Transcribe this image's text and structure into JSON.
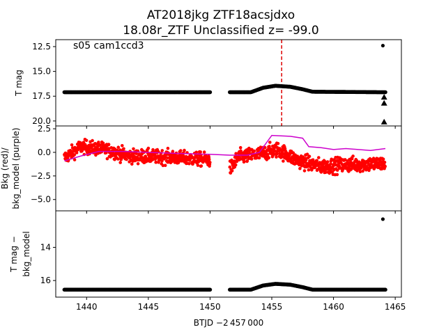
{
  "figure": {
    "title_line1": "AT2018jkg  ZTF18acsjdxo",
    "title_line2": "18.08r_ZTF Unclassified z= -99.0",
    "annotation": "s05 cam1ccd3",
    "xlabel": "BTJD −2 457 000"
  },
  "chart_data": [
    {
      "type": "scatter",
      "panel": "top",
      "ylabel": "T mag",
      "y_inverted": true,
      "xlim": [
        1437.5,
        1465.5
      ],
      "ylim": [
        20.5,
        11.8
      ],
      "xticks": [
        1440,
        1445,
        1450,
        1455,
        1460,
        1465
      ],
      "yticks": [
        12.5,
        15.0,
        17.5,
        20.0
      ],
      "ytick_labels": [
        "12.5",
        "15.0",
        "17.5",
        "20.0"
      ],
      "grid": false,
      "series": [
        {
          "marker": "dot",
          "color": "#000000",
          "segments": [
            {
              "x_start": 1438.2,
              "x_end": 1450.0,
              "profile": [
                [
                  1438.2,
                  17.1
                ],
                [
                  1450.0,
                  17.1
                ]
              ]
            },
            {
              "x_start": 1451.6,
              "x_end": 1464.2,
              "profile": [
                [
                  1451.6,
                  17.1
                ],
                [
                  1453.3,
                  17.1
                ],
                [
                  1454.3,
                  16.65
                ],
                [
                  1455.3,
                  16.45
                ],
                [
                  1456.5,
                  16.55
                ],
                [
                  1457.5,
                  16.8
                ],
                [
                  1458.3,
                  17.05
                ],
                [
                  1464.2,
                  17.1
                ]
              ]
            }
          ]
        },
        {
          "marker": "dot",
          "color": "#000000",
          "points": [
            [
              1464.0,
              12.4
            ]
          ]
        },
        {
          "marker": "triangle",
          "color": "#000000",
          "points": [
            [
              1464.1,
              17.6
            ],
            [
              1464.1,
              18.2
            ],
            [
              1464.1,
              20.1
            ],
            [
              1464.1,
              21.0
            ]
          ]
        }
      ],
      "vline": {
        "x": 1455.8,
        "color": "#dd0000",
        "style": "dashed"
      }
    },
    {
      "type": "scatter",
      "panel": "middle",
      "ylabel_line1": "Bkg (red)/",
      "ylabel_line2": "bkg_model (purple)",
      "xlim": [
        1437.5,
        1465.5
      ],
      "ylim": [
        -6.2,
        2.8
      ],
      "xticks": [
        1440,
        1445,
        1450,
        1455,
        1460,
        1465
      ],
      "yticks": [
        2.5,
        0.0,
        -2.5,
        -5.0
      ],
      "ytick_labels": [
        "2.5",
        "0.0",
        "−2.5",
        "−5.0"
      ],
      "grid": false,
      "series": [
        {
          "color": "#ff0000",
          "marker": "dot",
          "segments": [
            {
              "x_start": 1438.2,
              "x_end": 1450.0,
              "profile": [
                [
                  1438.2,
                  -0.6
                ],
                [
                  1439.5,
                  0.6
                ],
                [
                  1441.5,
                  0.3
                ],
                [
                  1443.5,
                  -0.4
                ],
                [
                  1446.5,
                  -0.5
                ],
                [
                  1450.0,
                  -0.8
                ]
              ],
              "spread": 1.2
            },
            {
              "x_start": 1451.6,
              "x_end": 1464.2,
              "profile": [
                [
                  1451.6,
                  -1.8
                ],
                [
                  1452.3,
                  -0.5
                ],
                [
                  1454.0,
                  -0.2
                ],
                [
                  1455.5,
                  0.3
                ],
                [
                  1457.0,
                  -0.8
                ],
                [
                  1459.0,
                  -1.5
                ],
                [
                  1461.0,
                  -1.3
                ],
                [
                  1464.2,
                  -1.2
                ]
              ],
              "spread": 1.3
            }
          ]
        },
        {
          "color": "#cc00cc",
          "marker": "line",
          "points": [
            [
              1438.2,
              -0.9
            ],
            [
              1439.5,
              -0.4
            ],
            [
              1441.0,
              0.1
            ],
            [
              1443.0,
              0.1
            ],
            [
              1445.0,
              0.0
            ],
            [
              1447.0,
              -0.1
            ],
            [
              1450.0,
              -0.2
            ],
            [
              1451.6,
              -0.3
            ],
            [
              1453.0,
              -0.3
            ],
            [
              1454.0,
              0.0
            ],
            [
              1455.0,
              1.8
            ],
            [
              1456.5,
              1.7
            ],
            [
              1457.5,
              1.5
            ],
            [
              1458.0,
              0.6
            ],
            [
              1459.0,
              0.5
            ],
            [
              1460.0,
              0.3
            ],
            [
              1461.0,
              0.4
            ],
            [
              1462.0,
              0.3
            ],
            [
              1463.0,
              0.2
            ],
            [
              1464.2,
              0.4
            ]
          ]
        }
      ]
    },
    {
      "type": "scatter",
      "panel": "bottom",
      "ylabel_line1": "T mag −",
      "ylabel_line2": "bkg_model",
      "y_inverted": true,
      "xlim": [
        1437.5,
        1465.5
      ],
      "ylim": [
        17.0,
        11.8
      ],
      "xticks": [
        1440,
        1445,
        1450,
        1455,
        1460,
        1465
      ],
      "xtick_labels": [
        "1440",
        "1445",
        "1450",
        "1455",
        "1460",
        "1465"
      ],
      "yticks": [
        14,
        16
      ],
      "ytick_labels": [
        "14",
        "16"
      ],
      "grid": false,
      "series": [
        {
          "marker": "dot",
          "color": "#000000",
          "segments": [
            {
              "x_start": 1438.2,
              "x_end": 1450.0,
              "profile": [
                [
                  1438.2,
                  16.55
                ],
                [
                  1450.0,
                  16.55
                ]
              ]
            },
            {
              "x_start": 1451.6,
              "x_end": 1464.2,
              "profile": [
                [
                  1451.6,
                  16.55
                ],
                [
                  1453.3,
                  16.55
                ],
                [
                  1454.3,
                  16.3
                ],
                [
                  1455.3,
                  16.2
                ],
                [
                  1456.5,
                  16.25
                ],
                [
                  1457.5,
                  16.4
                ],
                [
                  1458.3,
                  16.55
                ],
                [
                  1464.2,
                  16.55
                ]
              ]
            }
          ]
        },
        {
          "marker": "dot",
          "color": "#000000",
          "points": [
            [
              1464.0,
              12.3
            ]
          ]
        }
      ]
    }
  ]
}
